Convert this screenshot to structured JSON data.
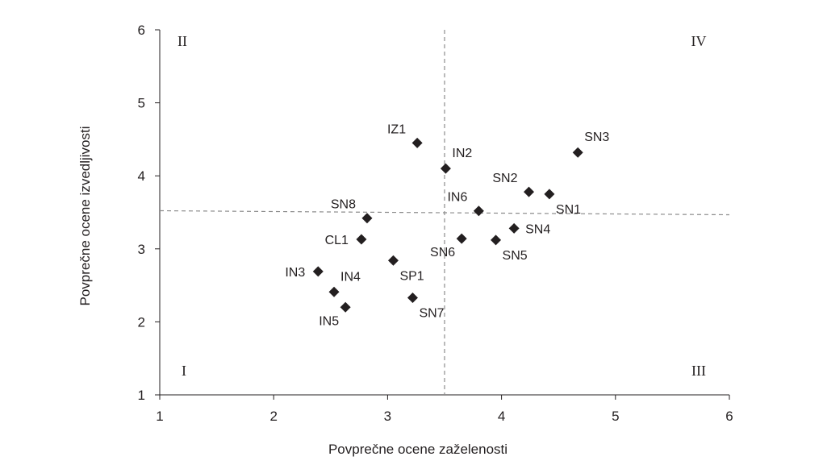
{
  "chart_data": {
    "type": "scatter",
    "title": "",
    "xlabel": "Povprečne ocene zaželenosti",
    "ylabel": "Povprečne ocene izvedljivosti",
    "xlim": [
      1,
      6
    ],
    "ylim": [
      1,
      6
    ],
    "xticks": [
      "1",
      "2",
      "3",
      "4",
      "5",
      "6"
    ],
    "yticks": [
      "1",
      "2",
      "3",
      "4",
      "5",
      "6"
    ],
    "grid": false,
    "marker": "diamond",
    "marker_color": "#231f20",
    "reference_lines": {
      "x": 3.5,
      "y": 3.5,
      "style": "dashed",
      "color": "#8c8c8c"
    },
    "quadrants": [
      {
        "label": "I",
        "position": "bottom-left"
      },
      {
        "label": "II",
        "position": "top-left"
      },
      {
        "label": "III",
        "position": "bottom-right"
      },
      {
        "label": "IV",
        "position": "top-right"
      }
    ],
    "points": [
      {
        "label": "IZ1",
        "x": 3.26,
        "y": 4.45,
        "label_side": "left-up"
      },
      {
        "label": "IN2",
        "x": 3.51,
        "y": 4.1,
        "label_side": "right-up"
      },
      {
        "label": "SN3",
        "x": 4.67,
        "y": 4.32,
        "label_side": "right-up"
      },
      {
        "label": "SN2",
        "x": 4.24,
        "y": 3.78,
        "label_side": "left-up"
      },
      {
        "label": "SN1",
        "x": 4.42,
        "y": 3.75,
        "label_side": "right-down"
      },
      {
        "label": "IN6",
        "x": 3.8,
        "y": 3.52,
        "label_side": "left-up"
      },
      {
        "label": "SN8",
        "x": 2.82,
        "y": 3.42,
        "label_side": "left-up"
      },
      {
        "label": "SN4",
        "x": 4.11,
        "y": 3.28,
        "label_side": "right"
      },
      {
        "label": "CL1",
        "x": 2.77,
        "y": 3.13,
        "label_side": "left"
      },
      {
        "label": "SN6",
        "x": 3.65,
        "y": 3.14,
        "label_side": "left-down"
      },
      {
        "label": "SN5",
        "x": 3.95,
        "y": 3.12,
        "label_side": "right-down"
      },
      {
        "label": "SP1",
        "x": 3.05,
        "y": 2.84,
        "label_side": "right-down"
      },
      {
        "label": "IN3",
        "x": 2.39,
        "y": 2.69,
        "label_side": "left"
      },
      {
        "label": "IN4",
        "x": 2.53,
        "y": 2.41,
        "label_side": "right-up"
      },
      {
        "label": "SN7",
        "x": 3.22,
        "y": 2.33,
        "label_side": "right-down"
      },
      {
        "label": "IN5",
        "x": 2.63,
        "y": 2.2,
        "label_side": "left-down"
      }
    ]
  }
}
